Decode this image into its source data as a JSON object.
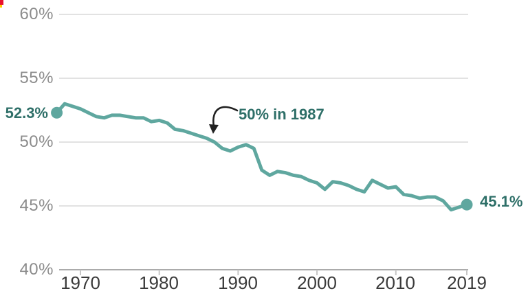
{
  "chart_data": {
    "type": "line",
    "title": "",
    "xlabel": "",
    "ylabel": "",
    "x": [
      1967,
      1968,
      1969,
      1970,
      1971,
      1972,
      1973,
      1974,
      1975,
      1976,
      1977,
      1978,
      1979,
      1980,
      1981,
      1982,
      1983,
      1984,
      1985,
      1986,
      1987,
      1988,
      1989,
      1990,
      1991,
      1992,
      1993,
      1994,
      1995,
      1996,
      1997,
      1998,
      1999,
      2000,
      2001,
      2002,
      2003,
      2004,
      2005,
      2006,
      2007,
      2008,
      2009,
      2010,
      2011,
      2012,
      2013,
      2014,
      2015,
      2016,
      2017,
      2018,
      2019
    ],
    "values": [
      52.3,
      53.0,
      52.8,
      52.6,
      52.3,
      52.0,
      51.9,
      52.1,
      52.1,
      52.0,
      51.9,
      51.9,
      51.6,
      51.7,
      51.5,
      51.0,
      50.9,
      50.7,
      50.5,
      50.3,
      50.0,
      49.5,
      49.3,
      49.6,
      49.8,
      49.5,
      47.8,
      47.4,
      47.7,
      47.6,
      47.4,
      47.3,
      47.0,
      46.8,
      46.3,
      46.9,
      46.8,
      46.6,
      46.3,
      46.1,
      47.0,
      46.7,
      46.4,
      46.5,
      45.9,
      45.8,
      45.6,
      45.7,
      45.7,
      45.4,
      44.7,
      44.9,
      45.1
    ],
    "ylim": [
      40,
      60
    ],
    "xlim": [
      1964.5,
      2019.2
    ],
    "grid": "horizontal",
    "legend": "none",
    "y_tick_labels": [
      "60%",
      "55%",
      "50%",
      "45%",
      "40%"
    ],
    "y_tick_values": [
      60,
      55,
      50,
      45,
      40
    ],
    "x_tick_labels": [
      "1970",
      "1980",
      "1990",
      "2000",
      "2010",
      "2019"
    ],
    "x_tick_years": [
      1970,
      1980,
      1990,
      2000,
      2010,
      2019
    ],
    "annotations": {
      "start_label": "52.3%",
      "start_year": 1967,
      "start_value": 52.3,
      "end_label": "45.1%",
      "end_year": 2019,
      "end_value": 45.1,
      "callout_label": "50% in 1987",
      "callout_year": 1987,
      "callout_value": 50.0
    },
    "colors": {
      "line": "#5FA79F",
      "marker": "#5FA79F",
      "accent_text": "#2E6F68",
      "y_tick_text": "#8C8C8C",
      "x_tick_text": "#3A3A3A",
      "gridline": "#D9D9D9",
      "axis_line": "#ABABAB",
      "tick_mark": "#C6C6C6",
      "arrow": "#222222",
      "background": "#FFFFFF",
      "corner_artifact_red": "#E8112D",
      "corner_artifact_yellow": "#FFCC00"
    }
  }
}
